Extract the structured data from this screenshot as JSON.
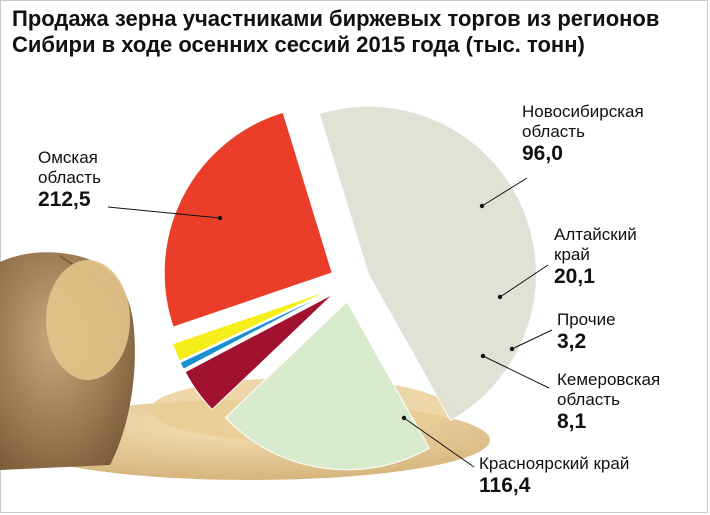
{
  "title": "Продажа зерна участниками биржевых торгов из регионов Сибири в ходе осенних сессий 2015 года (тыс. тонн)",
  "chart_data": {
    "type": "pie",
    "title": "Продажа зерна участниками биржевых торгов из регионов Сибири в ходе осенних сессий 2015 года (тыс. тонн)",
    "unit": "тыс. тонн",
    "slices": [
      {
        "label": "Омская область",
        "name_lines": [
          "Омская",
          "область"
        ],
        "value": 212.5,
        "value_text": "212,5",
        "color": "#dfe0d2"
      },
      {
        "label": "Новосибирская область",
        "name_lines": [
          "Новосибирская",
          "область"
        ],
        "value": 96.0,
        "value_text": "96,0",
        "color": "#d8ebcc"
      },
      {
        "label": "Алтайский край",
        "name_lines": [
          "Алтайский",
          "край"
        ],
        "value": 20.1,
        "value_text": "20,1",
        "color": "#a0122f"
      },
      {
        "label": "Прочие",
        "name_lines": [
          "Прочие"
        ],
        "value": 3.2,
        "value_text": "3,2",
        "color": "#1a8fd0"
      },
      {
        "label": "Кемеровская область",
        "name_lines": [
          "Кемеровская",
          "область"
        ],
        "value": 8.1,
        "value_text": "8,1",
        "color": "#f5ee1a"
      },
      {
        "label": "Красноярский край",
        "name_lines": [
          "Красноярский край"
        ],
        "value": 116.4,
        "value_text": "116,4",
        "color": "#ea3e2a"
      }
    ]
  }
}
